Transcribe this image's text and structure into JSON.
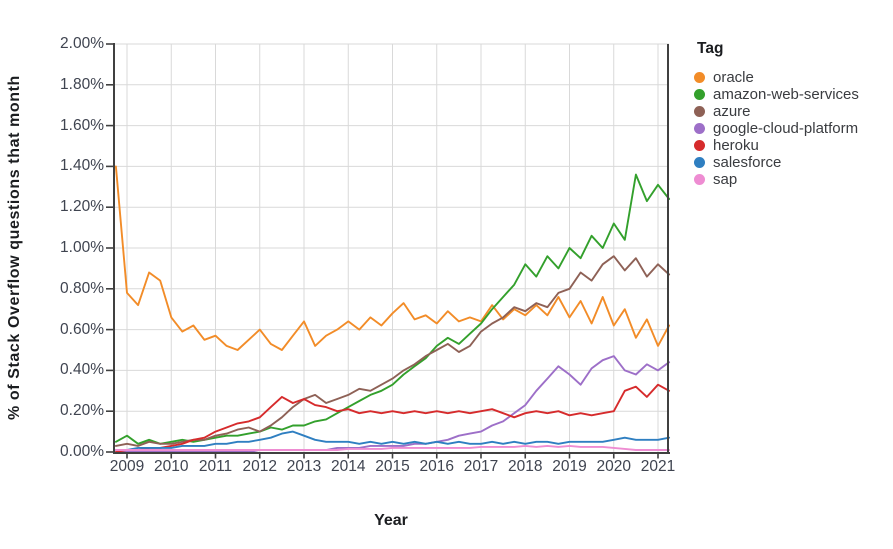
{
  "colors": {
    "background": "#ffffff",
    "grid": "#d9d9d9",
    "axis": "#404040",
    "tick_label": "#3f4450",
    "title": "#1b1d20"
  },
  "legend": {
    "title": "Tag"
  },
  "chart_data": {
    "type": "line",
    "title": "",
    "xlabel": "Year",
    "ylabel": "% of Stack Overflow questions that month",
    "grid": true,
    "legend_position": "right",
    "x_axis": {
      "tick_years": [
        2009,
        2010,
        2011,
        2012,
        2013,
        2014,
        2015,
        2016,
        2017,
        2018,
        2019,
        2020,
        2021
      ],
      "tick_labels": [
        "2009",
        "2010",
        "2011",
        "2012",
        "2013",
        "2014",
        "2015",
        "2016",
        "2017",
        "2018",
        "2019",
        "2020",
        "2021"
      ],
      "range": [
        2008.68,
        2021.25
      ]
    },
    "y_axis": {
      "tick_values": [
        2.0,
        1.8,
        1.6,
        1.4,
        1.2,
        1.0,
        0.8,
        0.6,
        0.4,
        0.2,
        0.0
      ],
      "tick_labels": [
        "2.00%",
        "1.80%",
        "1.60%",
        "1.40%",
        "1.20%",
        "1.00%",
        "0.80%",
        "0.60%",
        "0.40%",
        "0.20%",
        "0.00%"
      ],
      "range": [
        0,
        2.0
      ],
      "unit": "%"
    },
    "x": [
      2008.75,
      2009,
      2009.25,
      2009.5,
      2009.75,
      2010,
      2010.25,
      2010.5,
      2010.75,
      2011,
      2011.25,
      2011.5,
      2011.75,
      2012,
      2012.25,
      2012.5,
      2012.75,
      2013,
      2013.25,
      2013.5,
      2013.75,
      2014,
      2014.25,
      2014.5,
      2014.75,
      2015,
      2015.25,
      2015.5,
      2015.75,
      2016,
      2016.25,
      2016.5,
      2016.75,
      2017,
      2017.25,
      2017.5,
      2017.75,
      2018,
      2018.25,
      2018.5,
      2018.75,
      2019,
      2019.25,
      2019.5,
      2019.75,
      2020,
      2020.25,
      2020.5,
      2020.75,
      2021,
      2021.25
    ],
    "series": [
      {
        "name": "oracle",
        "color": "#f28c28",
        "values": [
          1.4,
          0.78,
          0.72,
          0.88,
          0.84,
          0.66,
          0.59,
          0.62,
          0.55,
          0.57,
          0.52,
          0.5,
          0.55,
          0.6,
          0.53,
          0.5,
          0.57,
          0.64,
          0.52,
          0.57,
          0.6,
          0.64,
          0.6,
          0.66,
          0.62,
          0.68,
          0.73,
          0.65,
          0.67,
          0.63,
          0.69,
          0.64,
          0.66,
          0.64,
          0.72,
          0.65,
          0.7,
          0.67,
          0.72,
          0.67,
          0.76,
          0.66,
          0.74,
          0.63,
          0.76,
          0.62,
          0.7,
          0.56,
          0.65,
          0.52,
          0.62
        ]
      },
      {
        "name": "amazon-web-services",
        "color": "#33a02c",
        "values": [
          0.05,
          0.08,
          0.04,
          0.06,
          0.04,
          0.05,
          0.06,
          0.05,
          0.06,
          0.07,
          0.08,
          0.08,
          0.09,
          0.1,
          0.12,
          0.11,
          0.13,
          0.13,
          0.15,
          0.16,
          0.19,
          0.22,
          0.25,
          0.28,
          0.3,
          0.33,
          0.38,
          0.42,
          0.46,
          0.52,
          0.56,
          0.53,
          0.58,
          0.63,
          0.7,
          0.76,
          0.82,
          0.92,
          0.86,
          0.96,
          0.9,
          1.0,
          0.95,
          1.06,
          1.0,
          1.12,
          1.04,
          1.36,
          1.23,
          1.31,
          1.24
        ]
      },
      {
        "name": "azure",
        "color": "#8e6156",
        "values": [
          0.03,
          0.04,
          0.03,
          0.05,
          0.04,
          0.04,
          0.05,
          0.06,
          0.06,
          0.08,
          0.09,
          0.11,
          0.12,
          0.1,
          0.13,
          0.17,
          0.22,
          0.26,
          0.28,
          0.24,
          0.26,
          0.28,
          0.31,
          0.3,
          0.33,
          0.36,
          0.4,
          0.43,
          0.47,
          0.5,
          0.53,
          0.49,
          0.52,
          0.59,
          0.63,
          0.66,
          0.71,
          0.69,
          0.73,
          0.71,
          0.78,
          0.8,
          0.88,
          0.84,
          0.92,
          0.96,
          0.89,
          0.95,
          0.86,
          0.92,
          0.87
        ]
      },
      {
        "name": "google-cloud-platform",
        "color": "#9d6fc8",
        "values": [
          0.0,
          0.0,
          0.0,
          0.0,
          0.0,
          0.0,
          0.0,
          0.0,
          0.0,
          0.0,
          0.0,
          0.0,
          0.0,
          0.01,
          0.01,
          0.01,
          0.01,
          0.01,
          0.01,
          0.01,
          0.02,
          0.02,
          0.02,
          0.03,
          0.03,
          0.03,
          0.03,
          0.04,
          0.04,
          0.05,
          0.06,
          0.08,
          0.09,
          0.1,
          0.13,
          0.15,
          0.19,
          0.23,
          0.3,
          0.36,
          0.42,
          0.38,
          0.33,
          0.41,
          0.45,
          0.47,
          0.4,
          0.38,
          0.43,
          0.4,
          0.44
        ]
      },
      {
        "name": "heroku",
        "color": "#d62b2c",
        "values": [
          0.0,
          0.01,
          0.01,
          0.02,
          0.02,
          0.03,
          0.04,
          0.06,
          0.07,
          0.1,
          0.12,
          0.14,
          0.15,
          0.17,
          0.22,
          0.27,
          0.24,
          0.26,
          0.23,
          0.22,
          0.2,
          0.21,
          0.19,
          0.2,
          0.19,
          0.2,
          0.19,
          0.2,
          0.19,
          0.2,
          0.19,
          0.2,
          0.19,
          0.2,
          0.21,
          0.19,
          0.17,
          0.19,
          0.2,
          0.19,
          0.2,
          0.18,
          0.19,
          0.18,
          0.19,
          0.2,
          0.3,
          0.32,
          0.27,
          0.33,
          0.3
        ]
      },
      {
        "name": "salesforce",
        "color": "#2f7fc1",
        "values": [
          0.01,
          0.01,
          0.02,
          0.02,
          0.02,
          0.02,
          0.03,
          0.03,
          0.03,
          0.04,
          0.04,
          0.05,
          0.05,
          0.06,
          0.07,
          0.09,
          0.1,
          0.08,
          0.06,
          0.05,
          0.05,
          0.05,
          0.04,
          0.05,
          0.04,
          0.05,
          0.04,
          0.05,
          0.04,
          0.05,
          0.04,
          0.05,
          0.04,
          0.04,
          0.05,
          0.04,
          0.05,
          0.04,
          0.05,
          0.05,
          0.04,
          0.05,
          0.05,
          0.05,
          0.05,
          0.06,
          0.07,
          0.06,
          0.06,
          0.06,
          0.07
        ]
      },
      {
        "name": "sap",
        "color": "#ee8cd2",
        "values": [
          0.01,
          0.01,
          0.01,
          0.01,
          0.01,
          0.01,
          0.01,
          0.01,
          0.01,
          0.01,
          0.01,
          0.01,
          0.01,
          0.01,
          0.01,
          0.01,
          0.01,
          0.01,
          0.01,
          0.01,
          0.01,
          0.015,
          0.015,
          0.015,
          0.015,
          0.02,
          0.02,
          0.02,
          0.02,
          0.02,
          0.02,
          0.02,
          0.02,
          0.025,
          0.025,
          0.025,
          0.025,
          0.03,
          0.025,
          0.03,
          0.025,
          0.03,
          0.025,
          0.025,
          0.025,
          0.02,
          0.015,
          0.01,
          0.01,
          0.01,
          0.01
        ]
      }
    ]
  }
}
